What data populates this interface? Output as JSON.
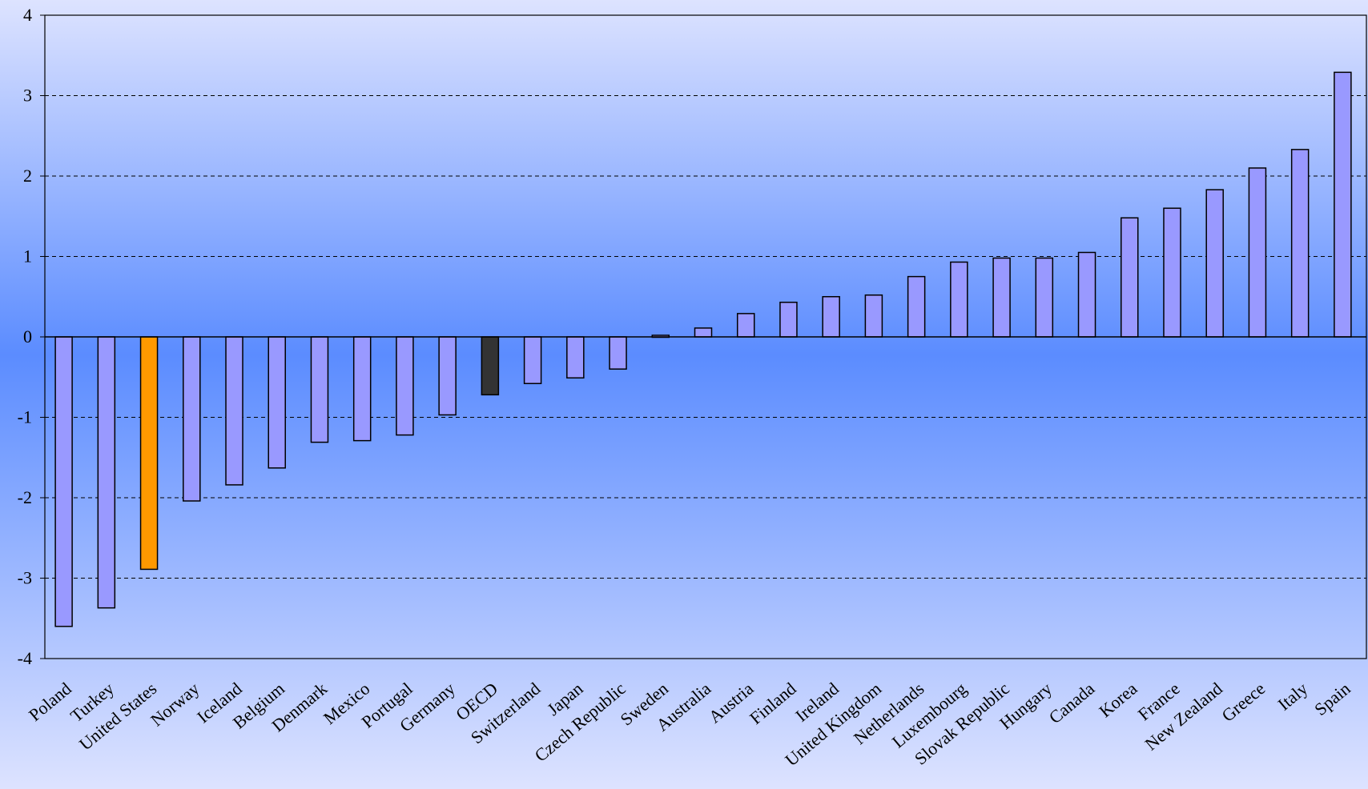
{
  "chart_data": {
    "type": "bar",
    "title": "",
    "xlabel": "",
    "ylabel": "",
    "ylim": [
      -4,
      4
    ],
    "yticks": [
      -4,
      -3,
      -2,
      -1,
      0,
      1,
      2,
      3,
      4
    ],
    "grid": true,
    "categories": [
      "Poland",
      "Turkey",
      "United States",
      "Norway",
      "Iceland",
      "Belgium",
      "Denmark",
      "Mexico",
      "Portugal",
      "Germany",
      "OECD",
      "Switzerland",
      "Japan",
      "Czech Republic",
      "Sweden",
      "Australia",
      "Austria",
      "Finland",
      "Ireland",
      "United Kingdom",
      "Netherlands",
      "Luxembourg",
      "Slovak Republic",
      "Hungary",
      "Canada",
      "Korea",
      "France",
      "New Zealand",
      "Greece",
      "Italy",
      "Spain"
    ],
    "values": [
      -3.6,
      -3.37,
      -2.89,
      -2.04,
      -1.84,
      -1.63,
      -1.31,
      -1.29,
      -1.22,
      -0.97,
      -0.72,
      -0.58,
      -0.51,
      -0.4,
      0.02,
      0.11,
      0.29,
      0.43,
      0.5,
      0.52,
      0.75,
      0.93,
      0.98,
      0.98,
      1.05,
      1.48,
      1.6,
      1.83,
      2.1,
      2.33,
      3.29
    ],
    "highlight": {
      "United States": "#FF9900",
      "OECD": "#333333"
    },
    "colors": {
      "bar": "#9999FF",
      "bar_stroke": "#000000",
      "grid": "#000000",
      "background_edge": "#DDE3FF",
      "background_center": "#5B8CFF"
    }
  }
}
